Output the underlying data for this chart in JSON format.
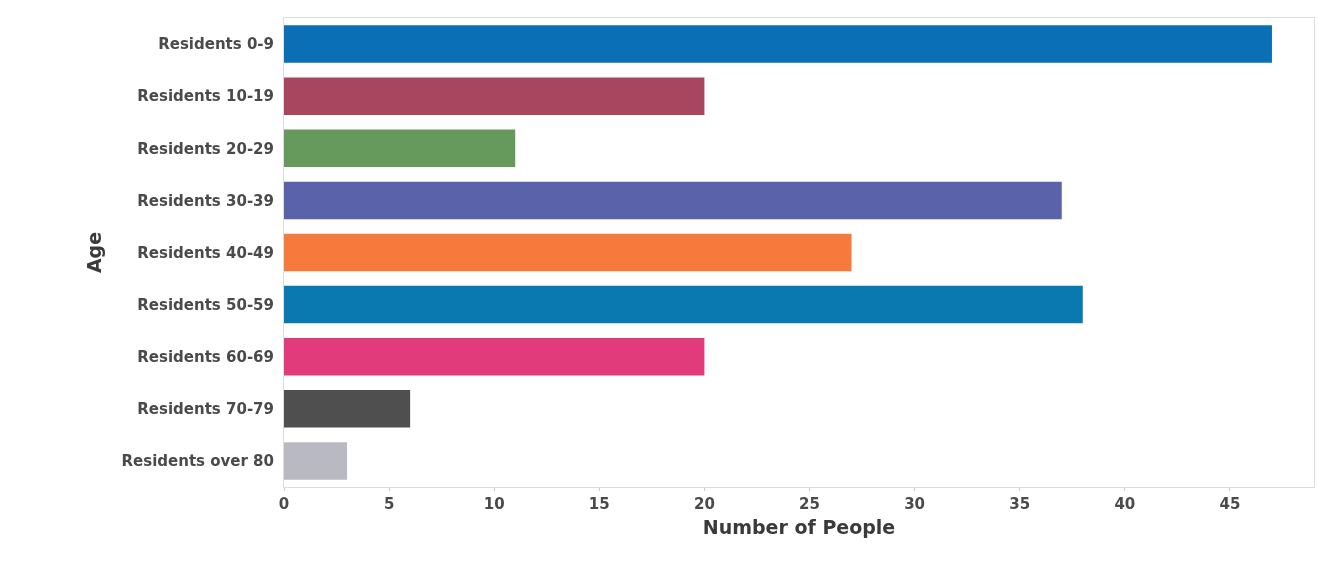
{
  "chart_data": {
    "type": "bar",
    "orientation": "horizontal",
    "xlabel": "Number of People",
    "ylabel": "Age",
    "categories": [
      "Residents 0-9",
      "Residents 10-19",
      "Residents 20-29",
      "Residents 30-39",
      "Residents 40-49",
      "Residents 50-59",
      "Residents 60-69",
      "Residents 70-79",
      "Residents over 80"
    ],
    "values": [
      47,
      20,
      11,
      37,
      27,
      38,
      20,
      6,
      3
    ],
    "colors": [
      "#0b6fb5",
      "#a8465f",
      "#669a5c",
      "#5a63a9",
      "#f57a3c",
      "#0a79af",
      "#e23b7b",
      "#4f4f4f",
      "#b9b9c1"
    ],
    "xlim": [
      0,
      49
    ],
    "xticks": [
      0,
      5,
      10,
      15,
      20,
      25,
      30,
      35,
      40,
      45
    ],
    "grid": false
  }
}
